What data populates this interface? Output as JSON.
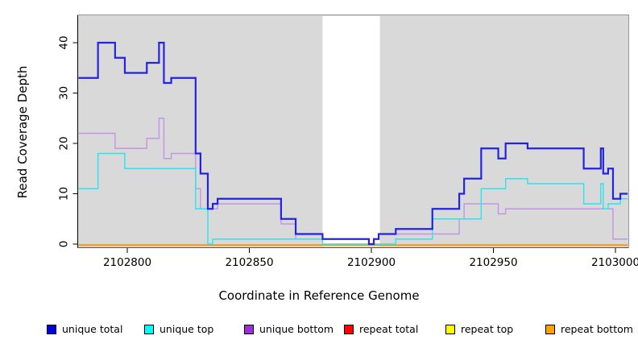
{
  "chart_data": {
    "type": "line",
    "subtype": "step-coverage-plot",
    "title": "",
    "xlabel": "Coordinate in Reference Genome",
    "ylabel": "Read Coverage Depth",
    "x_range": [
      2102780,
      2103005
    ],
    "y_range": [
      0,
      45.4
    ],
    "x_ticks": [
      2102800,
      2102850,
      2102900,
      2102950,
      2103000
    ],
    "y_ticks": [
      0,
      10,
      20,
      30,
      40
    ],
    "grid": "off",
    "plot_background": "#d9d9d9",
    "page_background": "#ffffff",
    "masked_region": {
      "x_start": 2102880,
      "x_end": 2102903.5,
      "color": "#ffffff"
    },
    "legend_position": "bottom",
    "series": [
      {
        "name": "unique total",
        "line_color": "#2323e0",
        "legend_color": "#0000dd",
        "line_width": 2.2,
        "steps": [
          [
            2102780,
            33
          ],
          [
            2102788,
            40
          ],
          [
            2102795,
            37
          ],
          [
            2102799,
            34
          ],
          [
            2102808,
            36
          ],
          [
            2102813,
            40
          ],
          [
            2102815,
            32
          ],
          [
            2102818,
            33
          ],
          [
            2102828,
            18
          ],
          [
            2102830,
            14
          ],
          [
            2102833,
            7
          ],
          [
            2102835,
            8
          ],
          [
            2102837,
            9
          ],
          [
            2102863,
            5
          ],
          [
            2102869,
            2
          ],
          [
            2102880,
            1
          ],
          [
            2102899,
            0
          ],
          [
            2102901,
            1
          ],
          [
            2102903,
            2
          ],
          [
            2102910,
            3
          ],
          [
            2102925,
            7
          ],
          [
            2102936,
            10
          ],
          [
            2102938,
            13
          ],
          [
            2102945,
            19
          ],
          [
            2102952,
            17
          ],
          [
            2102955,
            20
          ],
          [
            2102964,
            19
          ],
          [
            2102987,
            15
          ],
          [
            2102994,
            19
          ],
          [
            2102995,
            14
          ],
          [
            2102997,
            15
          ],
          [
            2102999,
            9
          ],
          [
            2103002,
            10
          ]
        ]
      },
      {
        "name": "unique top",
        "line_color": "#2ae4ef",
        "legend_color": "#00ffff",
        "line_width": 1.4,
        "steps": [
          [
            2102780,
            11
          ],
          [
            2102788,
            18
          ],
          [
            2102799,
            15
          ],
          [
            2102828,
            7
          ],
          [
            2102833,
            0
          ],
          [
            2102835,
            1
          ],
          [
            2102880,
            0
          ],
          [
            2102910,
            1
          ],
          [
            2102925,
            5
          ],
          [
            2102945,
            11
          ],
          [
            2102955,
            13
          ],
          [
            2102964,
            12
          ],
          [
            2102987,
            8
          ],
          [
            2102994,
            12
          ],
          [
            2102995,
            7
          ],
          [
            2102997,
            8
          ],
          [
            2103002,
            9
          ]
        ]
      },
      {
        "name": "unique bottom",
        "line_color": "#c495e4",
        "legend_color": "#9d2fd6",
        "line_width": 1.4,
        "steps": [
          [
            2102780,
            22
          ],
          [
            2102795,
            19
          ],
          [
            2102808,
            21
          ],
          [
            2102813,
            25
          ],
          [
            2102815,
            17
          ],
          [
            2102818,
            18
          ],
          [
            2102828,
            11
          ],
          [
            2102830,
            7
          ],
          [
            2102837,
            8
          ],
          [
            2102863,
            4
          ],
          [
            2102869,
            1
          ],
          [
            2102899,
            0
          ],
          [
            2102901,
            1
          ],
          [
            2102903,
            2
          ],
          [
            2102936,
            5
          ],
          [
            2102938,
            8
          ],
          [
            2102952,
            6
          ],
          [
            2102955,
            7
          ],
          [
            2102999,
            1
          ]
        ]
      },
      {
        "name": "repeat total",
        "line_color": "#e00000",
        "legend_color": "#ff0000",
        "line_width": 1.4,
        "steps": [
          [
            2102780,
            0
          ]
        ]
      },
      {
        "name": "repeat top",
        "line_color": "#f2f200",
        "legend_color": "#ffff00",
        "line_width": 1.4,
        "steps": [
          [
            2102780,
            0
          ]
        ]
      },
      {
        "name": "repeat bottom",
        "line_color": "#ff9404",
        "legend_color": "#ffa200",
        "line_width": 2,
        "steps": [
          [
            2102780,
            0
          ]
        ]
      }
    ]
  }
}
